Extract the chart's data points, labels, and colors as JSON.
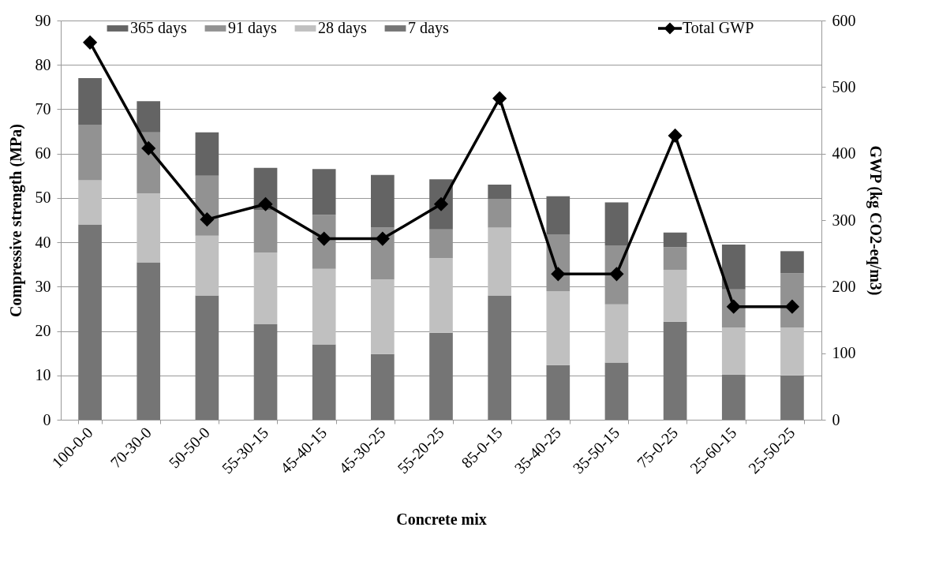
{
  "chart_data": {
    "type": "bar",
    "stacked": true,
    "xlabel": "Concrete mix",
    "ylabel": "Compressive strength (MPa)",
    "y2label": "GWP (kg CO2-eq/m3)",
    "categories": [
      "100-0-0",
      "70-30-0",
      "50-50-0",
      "55-30-15",
      "45-40-15",
      "45-30-25",
      "55-20-25",
      "85-0-15",
      "35-40-25",
      "35-50-15",
      "75-0-25",
      "25-60-15",
      "25-50-25"
    ],
    "series": [
      {
        "name": "7 days",
        "color": "#757575",
        "values": [
          44,
          35.5,
          28,
          21.5,
          17,
          14.8,
          19.6,
          28,
          12.3,
          12.9,
          22.1,
          10.2,
          10
        ]
      },
      {
        "name": "28 days",
        "color": "#c0c0c0",
        "values": [
          10,
          15.5,
          13.5,
          16.2,
          17,
          16.8,
          16.8,
          15.3,
          16.7,
          13.1,
          11.7,
          10.6,
          10.8
        ]
      },
      {
        "name": "91 days",
        "color": "#929292",
        "values": [
          12.5,
          13.8,
          13.5,
          9.6,
          12.2,
          11.7,
          6.5,
          6.5,
          12.8,
          13.3,
          5.1,
          8.6,
          12.2
        ]
      },
      {
        "name": "365 days",
        "color": "#646464",
        "values": [
          10.5,
          7,
          9.8,
          9.5,
          10.3,
          11.9,
          11.3,
          3.2,
          8.6,
          9.7,
          3.3,
          10.1,
          5
        ]
      },
      {
        "name": "Total GWP",
        "type": "line",
        "axis": "y2",
        "marker": "diamond",
        "color": "#000000",
        "values": [
          567,
          408,
          301,
          324,
          272,
          272,
          324,
          483,
          219,
          219,
          427,
          170,
          170
        ]
      }
    ],
    "ylim": [
      0,
      90
    ],
    "yticks": [
      0,
      10,
      20,
      30,
      40,
      50,
      60,
      70,
      80,
      90
    ],
    "y2lim": [
      0,
      600
    ],
    "y2ticks": [
      0,
      100,
      200,
      300,
      400,
      500,
      600
    ],
    "grid": "y",
    "legend": "top"
  }
}
